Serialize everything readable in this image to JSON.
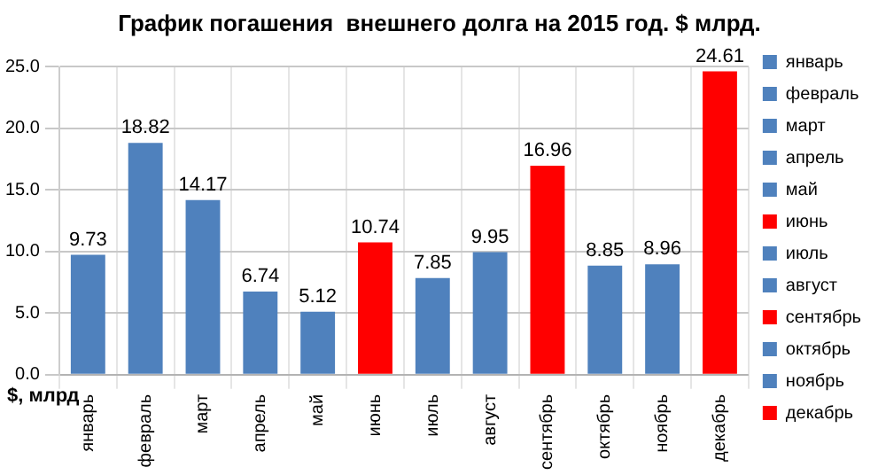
{
  "chart_data": {
    "type": "bar",
    "title": "График погашения  внешнего долга на 2015 год. $ млрд.",
    "ylabel": "$, млрд",
    "categories": [
      "январь",
      "февраль",
      "март",
      "апрель",
      "май",
      "июнь",
      "июль",
      "август",
      "сентябрь",
      "октябрь",
      "ноябрь",
      "декабрь"
    ],
    "series": [
      {
        "name": "январь",
        "color": "#4f81bd",
        "values": [
          9.73,
          null,
          null,
          null,
          null,
          null,
          null,
          null,
          null,
          null,
          null,
          null
        ]
      },
      {
        "name": "февраль",
        "color": "#4f81bd",
        "values": [
          null,
          18.82,
          null,
          null,
          null,
          null,
          null,
          null,
          null,
          null,
          null,
          null
        ]
      },
      {
        "name": "март",
        "color": "#4f81bd",
        "values": [
          null,
          null,
          14.17,
          null,
          null,
          null,
          null,
          null,
          null,
          null,
          null,
          null
        ]
      },
      {
        "name": "апрель",
        "color": "#4f81bd",
        "values": [
          null,
          null,
          null,
          6.74,
          null,
          null,
          null,
          null,
          null,
          null,
          null,
          null
        ]
      },
      {
        "name": "май",
        "color": "#4f81bd",
        "values": [
          null,
          null,
          null,
          null,
          5.12,
          null,
          null,
          null,
          null,
          null,
          null,
          null
        ]
      },
      {
        "name": "июнь",
        "color": "#ff0000",
        "values": [
          null,
          null,
          null,
          null,
          null,
          10.74,
          null,
          null,
          null,
          null,
          null,
          null
        ]
      },
      {
        "name": "июль",
        "color": "#4f81bd",
        "values": [
          null,
          null,
          null,
          null,
          null,
          null,
          7.85,
          null,
          null,
          null,
          null,
          null
        ]
      },
      {
        "name": "август",
        "color": "#4f81bd",
        "values": [
          null,
          null,
          null,
          null,
          null,
          null,
          null,
          9.95,
          null,
          null,
          null,
          null
        ]
      },
      {
        "name": "сентябрь",
        "color": "#ff0000",
        "values": [
          null,
          null,
          null,
          null,
          null,
          null,
          null,
          null,
          16.96,
          null,
          null,
          null
        ]
      },
      {
        "name": "октябрь",
        "color": "#4f81bd",
        "values": [
          null,
          null,
          null,
          null,
          null,
          null,
          null,
          null,
          null,
          8.85,
          null,
          null
        ]
      },
      {
        "name": "ноябрь",
        "color": "#4f81bd",
        "values": [
          null,
          null,
          null,
          null,
          null,
          null,
          null,
          null,
          null,
          null,
          8.96,
          null
        ]
      },
      {
        "name": "декабрь",
        "color": "#ff0000",
        "values": [
          null,
          null,
          null,
          null,
          null,
          null,
          null,
          null,
          null,
          null,
          null,
          24.61
        ]
      }
    ],
    "stacked": true,
    "ylim": [
      0,
      25
    ],
    "yticks": [
      {
        "value": 0,
        "label": "0.0"
      },
      {
        "value": 5,
        "label": "5.0"
      },
      {
        "value": 10,
        "label": "10.0"
      },
      {
        "value": 15,
        "label": "15.0"
      },
      {
        "value": 20,
        "label": "20.0"
      },
      {
        "value": 25,
        "label": "25.0"
      }
    ],
    "grid": true,
    "legend": "right",
    "data_labels": true
  }
}
